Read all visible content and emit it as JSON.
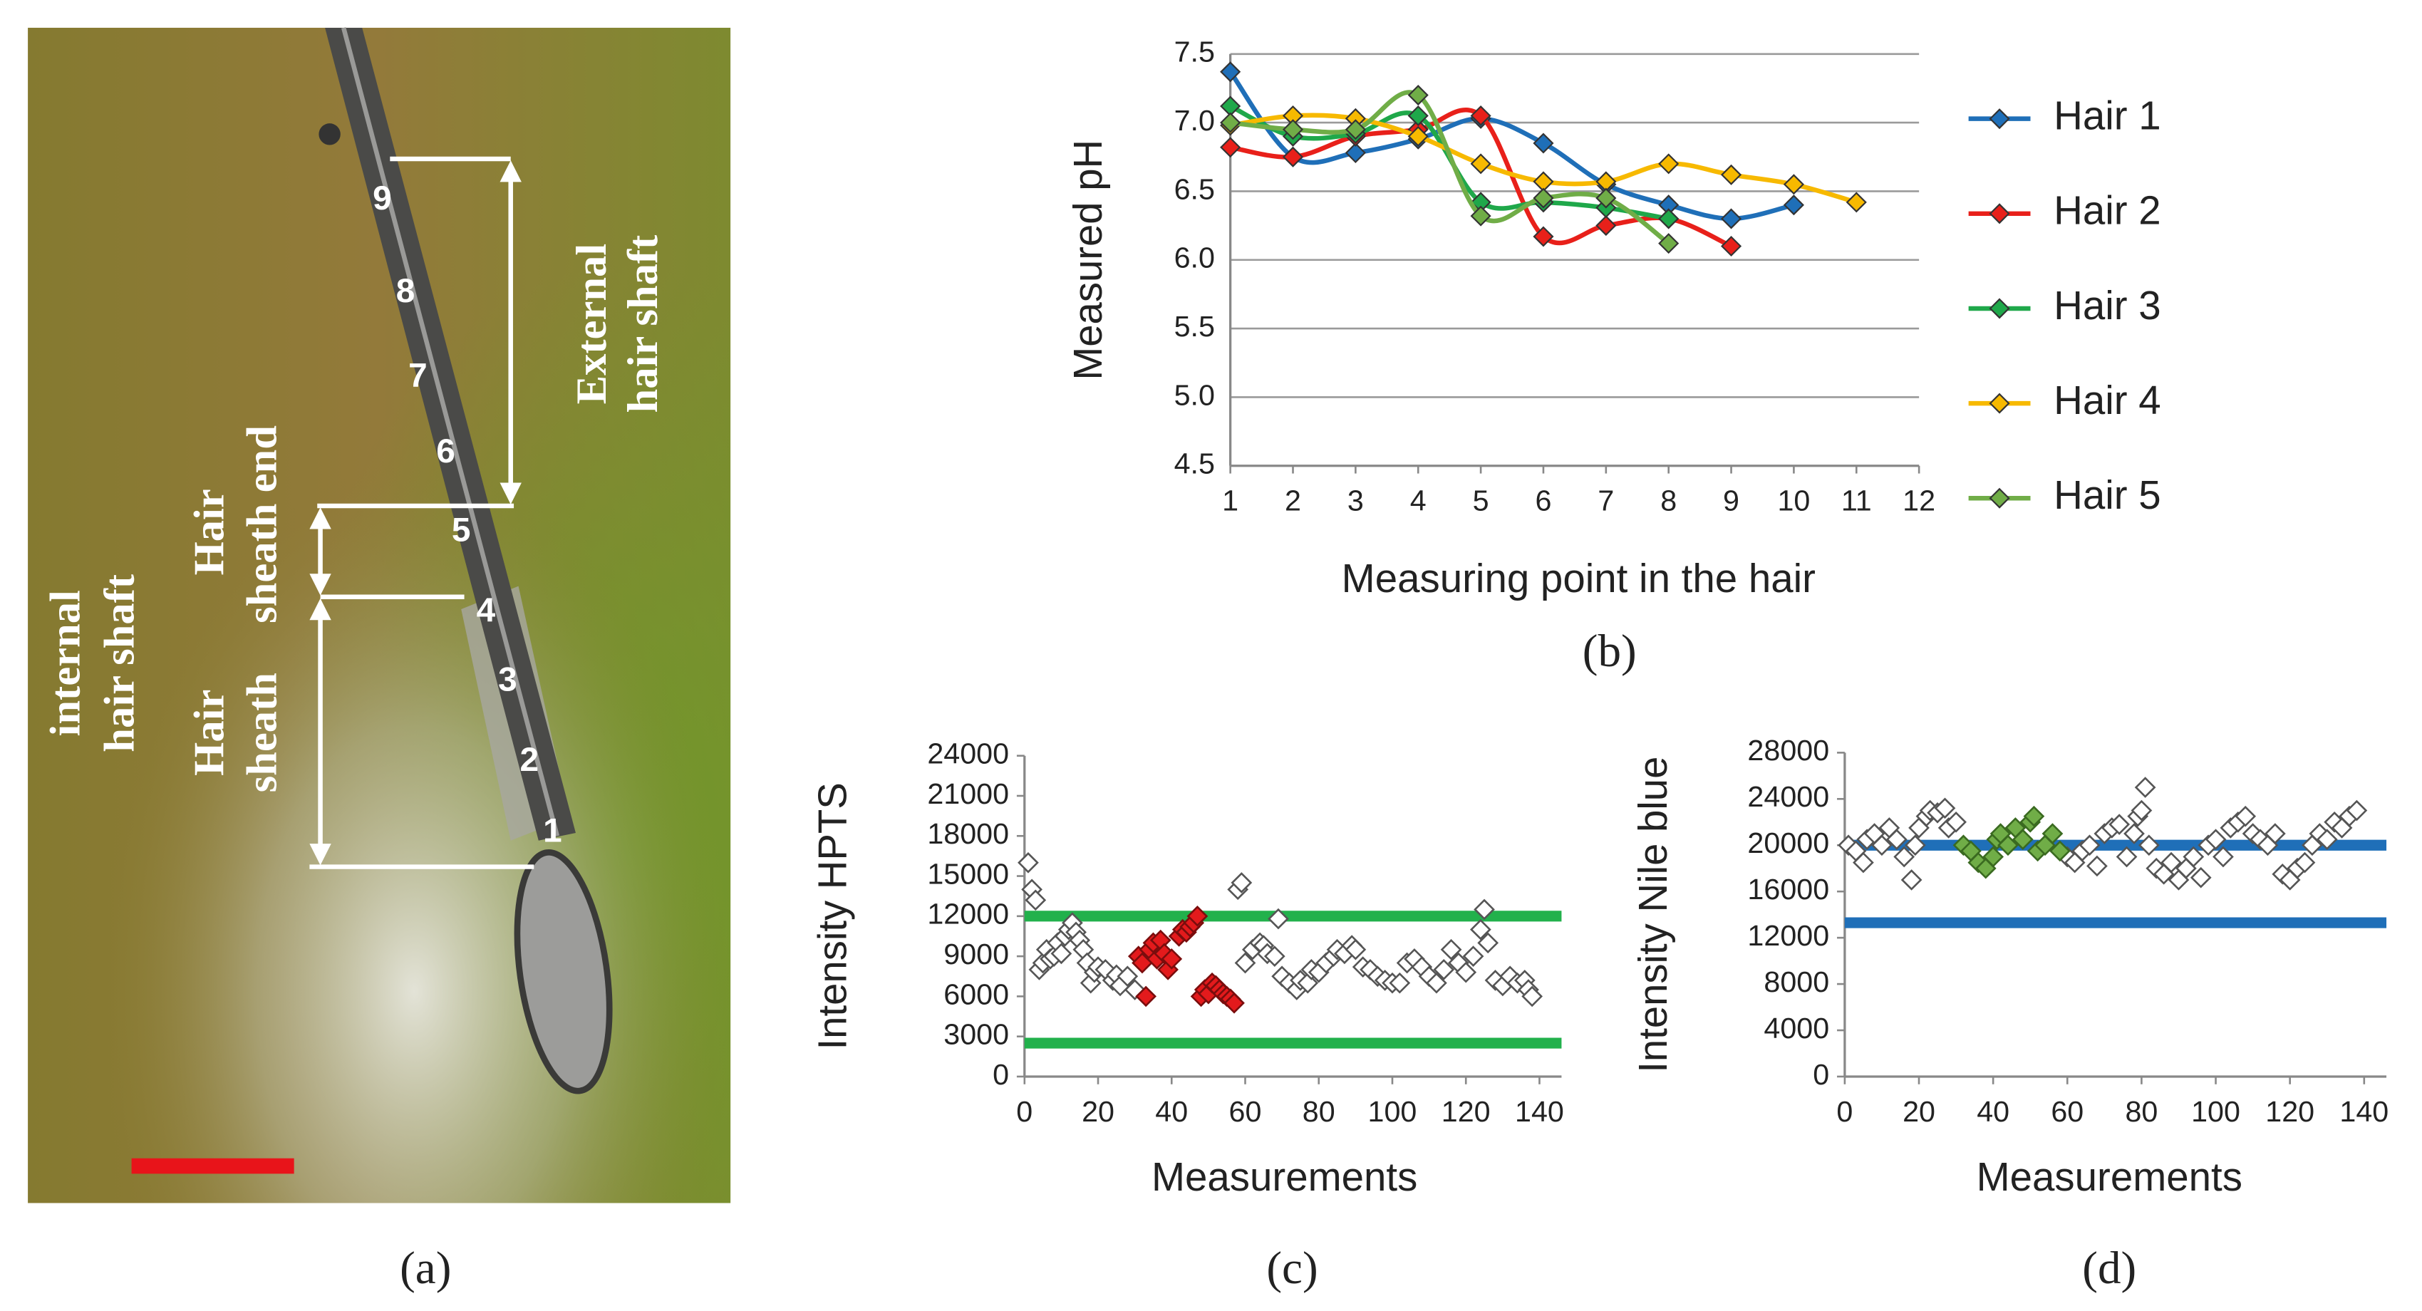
{
  "image_panel": {
    "point_labels": [
      "9",
      "8",
      "7",
      "6",
      "5",
      "4",
      "3",
      "2",
      "1"
    ],
    "annotations": [
      {
        "lines": [
          "External",
          "hair shaft"
        ]
      },
      {
        "lines": [
          "Hair",
          "sheath end"
        ]
      },
      {
        "lines": [
          "internal",
          "hair shaft"
        ]
      },
      {
        "lines": [
          "Hair",
          "sheath"
        ]
      }
    ],
    "caption": "(a)"
  },
  "chart_data": [
    {
      "type": "line",
      "caption": "(b)",
      "ylabel": "Measured pH",
      "xlabel": "Measuring point in the hair",
      "x": [
        1,
        2,
        3,
        4,
        5,
        6,
        7,
        8,
        9,
        10,
        11
      ],
      "series": [
        {
          "name": "Hair 1",
          "color": "#1f6fb8",
          "values": [
            7.37,
            6.75,
            6.78,
            6.88,
            7.03,
            6.85,
            6.55,
            6.4,
            6.3,
            6.4,
            null
          ]
        },
        {
          "name": "Hair 2",
          "color": "#e8201a",
          "values": [
            6.82,
            6.75,
            6.9,
            6.95,
            7.05,
            6.17,
            6.25,
            6.3,
            6.1,
            null,
            null
          ]
        },
        {
          "name": "Hair 3",
          "color": "#1fa84a",
          "values": [
            7.12,
            6.9,
            6.92,
            7.05,
            6.42,
            6.42,
            6.38,
            6.3,
            null,
            null,
            null
          ]
        },
        {
          "name": "Hair 4",
          "color": "#f7b900",
          "values": [
            6.98,
            7.05,
            7.03,
            6.9,
            6.7,
            6.57,
            6.57,
            6.7,
            6.62,
            6.55,
            6.42
          ]
        },
        {
          "name": "Hair 5",
          "color": "#70ad47",
          "values": [
            7.0,
            6.95,
            6.95,
            7.2,
            6.32,
            6.45,
            6.45,
            6.12,
            null,
            null,
            null
          ]
        }
      ],
      "xlim": [
        1,
        12
      ],
      "xticks": [
        1,
        2,
        3,
        4,
        5,
        6,
        7,
        8,
        9,
        10,
        11,
        12
      ],
      "ylim": [
        4.5,
        7.5
      ],
      "yticks": [
        4.5,
        {
          "value": 5,
          "label": "5.0"
        },
        5.5,
        {
          "value": 6,
          "label": "6.0"
        },
        6.5,
        {
          "value": 7,
          "label": "7.0"
        },
        7.5
      ],
      "grid": true,
      "legend": "right"
    },
    {
      "type": "scatter",
      "caption": "(c)",
      "ylabel": "Intensity  HPTS",
      "xlabel": "Measurements",
      "series": [
        {
          "color": "#555555",
          "fill": "#ffffff",
          "x": [
            1,
            2,
            3,
            4,
            5,
            6,
            7,
            8,
            9,
            10,
            11,
            12,
            13,
            14,
            15,
            16,
            17,
            18,
            19,
            20,
            22,
            24,
            25,
            26,
            28,
            30,
            58,
            59,
            60,
            62,
            64,
            65,
            66,
            68,
            69,
            70,
            72,
            74,
            75,
            77,
            78,
            80,
            82,
            84,
            85,
            87,
            89,
            90,
            92,
            94,
            96,
            98,
            100,
            102,
            104,
            106,
            108,
            110,
            112,
            114,
            116,
            118,
            120,
            122,
            124,
            125,
            126,
            128,
            130,
            132,
            134,
            136,
            137,
            138
          ],
          "values": [
            16000,
            14000,
            13200,
            8000,
            8500,
            9500,
            8800,
            9000,
            10000,
            9200,
            10500,
            11000,
            11500,
            10800,
            10200,
            9500,
            8500,
            7000,
            7800,
            8200,
            8000,
            7200,
            7600,
            6800,
            7500,
            6500,
            14000,
            14500,
            8500,
            9500,
            10000,
            9800,
            9200,
            9000,
            11800,
            7500,
            7000,
            6500,
            7200,
            7000,
            8000,
            7800,
            8500,
            9000,
            9500,
            9200,
            9800,
            9500,
            8200,
            8000,
            7500,
            7200,
            7000,
            7000,
            8500,
            8800,
            8200,
            7500,
            7000,
            8000,
            9500,
            8500,
            7800,
            9000,
            11000,
            12500,
            10000,
            7200,
            6800,
            7500,
            7000,
            7200,
            6500,
            6000
          ]
        },
        {
          "color": "#7a0d0d",
          "fill": "#e31a1c",
          "x": [
            31,
            32,
            33,
            34,
            35,
            36,
            37,
            38,
            39,
            40,
            42,
            43,
            44,
            45,
            46,
            47,
            48,
            49,
            50,
            51,
            52,
            53,
            54,
            55,
            56,
            57
          ],
          "values": [
            9000,
            8500,
            6000,
            9500,
            10000,
            8800,
            10200,
            9200,
            8000,
            8800,
            10500,
            11000,
            10800,
            11200,
            11500,
            12000,
            6000,
            6500,
            6200,
            7000,
            6800,
            6500,
            6200,
            6000,
            5800,
            5500
          ]
        }
      ],
      "hlines": [
        {
          "value": 12000,
          "color": "#22b14c"
        },
        {
          "value": 2500,
          "color": "#22b14c"
        }
      ],
      "xlim": [
        0,
        146
      ],
      "xticks": [
        0,
        20,
        40,
        60,
        80,
        100,
        120,
        140
      ],
      "ylim": [
        0,
        24000
      ],
      "yticks": [
        0,
        3000,
        6000,
        9000,
        12000,
        15000,
        18000,
        21000,
        24000
      ]
    },
    {
      "type": "scatter",
      "caption": "(d)",
      "ylabel": "Intensity  Nile blue",
      "xlabel": "Measurements",
      "series": [
        {
          "color": "#555555",
          "fill": "#ffffff",
          "x": [
            1,
            3,
            5,
            6,
            8,
            10,
            12,
            14,
            16,
            18,
            19,
            20,
            22,
            23,
            25,
            27,
            28,
            30,
            60,
            62,
            64,
            66,
            68,
            70,
            72,
            74,
            76,
            78,
            79,
            80,
            81,
            82,
            84,
            86,
            88,
            90,
            92,
            94,
            96,
            98,
            100,
            102,
            104,
            106,
            108,
            110,
            112,
            114,
            116,
            118,
            120,
            122,
            124,
            126,
            128,
            130,
            132,
            134,
            136,
            138
          ],
          "values": [
            20000,
            19500,
            18500,
            20500,
            21000,
            20000,
            21500,
            20500,
            19000,
            17000,
            20000,
            21500,
            22500,
            23000,
            22800,
            23200,
            21500,
            22000,
            19000,
            18500,
            19500,
            20000,
            18200,
            21000,
            21500,
            21800,
            19000,
            21000,
            22500,
            23000,
            25000,
            20000,
            18000,
            17500,
            18500,
            17000,
            18000,
            19000,
            17200,
            20000,
            20500,
            19000,
            21500,
            22000,
            22500,
            21000,
            20500,
            20000,
            21000,
            17500,
            17000,
            18000,
            18500,
            20000,
            21000,
            20500,
            22000,
            21500,
            22500,
            23000
          ]
        },
        {
          "color": "#3a6a20",
          "fill": "#70ad47",
          "x": [
            32,
            34,
            36,
            38,
            40,
            41,
            42,
            44,
            46,
            48,
            50,
            51,
            52,
            54,
            56,
            58
          ],
          "values": [
            20000,
            19500,
            18500,
            18000,
            19000,
            20500,
            21000,
            20000,
            21500,
            20500,
            22000,
            22500,
            19500,
            20000,
            21000,
            19500
          ]
        }
      ],
      "hlines": [
        {
          "value": 20000,
          "color": "#1f6fb8"
        },
        {
          "value": 13300,
          "color": "#1f6fb8"
        }
      ],
      "xlim": [
        0,
        146
      ],
      "xticks": [
        0,
        20,
        40,
        60,
        80,
        100,
        120,
        140
      ],
      "ylim": [
        0,
        28000
      ],
      "yticks": [
        0,
        4000,
        8000,
        12000,
        16000,
        20000,
        24000,
        28000
      ]
    }
  ]
}
